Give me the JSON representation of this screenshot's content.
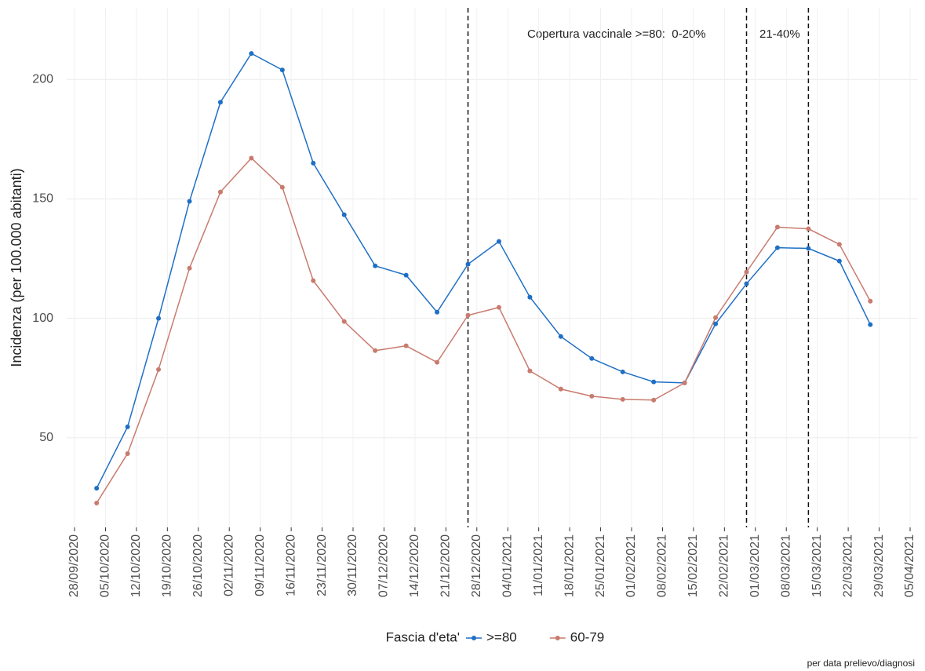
{
  "chart_data": {
    "type": "line",
    "y_label": "Incidenza (per 100.000 abitanti)",
    "annotations": [
      "Copertura vaccinale >=80:  0-20%",
      "21-40%"
    ],
    "caption": "per data prelievo/diagnosi",
    "legend_title": "Fascia d'eta'",
    "legend_position": "bottom",
    "grid": true,
    "x": [
      "2020-10-03",
      "2020-10-10",
      "2020-10-17",
      "2020-10-24",
      "2020-10-31",
      "2020-11-07",
      "2020-11-14",
      "2020-11-21",
      "2020-11-28",
      "2020-12-05",
      "2020-12-12",
      "2020-12-19",
      "2020-12-26",
      "2021-01-02",
      "2021-01-09",
      "2021-01-16",
      "2021-01-23",
      "2021-01-30",
      "2021-02-06",
      "2021-02-13",
      "2021-02-20",
      "2021-02-27",
      "2021-03-06",
      "2021-03-13",
      "2021-03-20",
      "2021-03-27"
    ],
    "series": [
      {
        "name": ">=80",
        "color": "#1f6fc5",
        "values": [
          28.9,
          54.6,
          100,
          149,
          190.5,
          210.9,
          204,
          165,
          143.4,
          122,
          118.1,
          102.6,
          122.7,
          132.2,
          108.9,
          92.4,
          83.2,
          77.6,
          73.4,
          73,
          97.7,
          114.5,
          129.6,
          129.3,
          124,
          97.4
        ]
      },
      {
        "name": "60-79",
        "color": "#c87b6e",
        "values": [
          22.7,
          43.4,
          78.6,
          121,
          152.9,
          167.1,
          154.9,
          115.8,
          98.7,
          86.5,
          88.5,
          81.6,
          101.3,
          104.6,
          78,
          70.4,
          67.4,
          66.1,
          65.8,
          73,
          100.3,
          119.4,
          138.2,
          137.5,
          131,
          107.2
        ]
      }
    ],
    "vlines": [
      "2020-12-26",
      "2021-02-27",
      "2021-03-13"
    ],
    "xlim": [
      "2020-09-28",
      "2021-04-05"
    ],
    "xticks": [
      {
        "value": "2020-09-28",
        "label": "28/09/2020"
      },
      {
        "value": "2020-10-05",
        "label": "05/10/2020"
      },
      {
        "value": "2020-10-12",
        "label": "12/10/2020"
      },
      {
        "value": "2020-10-19",
        "label": "19/10/2020"
      },
      {
        "value": "2020-10-26",
        "label": "26/10/2020"
      },
      {
        "value": "2020-11-02",
        "label": "02/11/2020"
      },
      {
        "value": "2020-11-09",
        "label": "09/11/2020"
      },
      {
        "value": "2020-11-16",
        "label": "16/11/2020"
      },
      {
        "value": "2020-11-23",
        "label": "23/11/2020"
      },
      {
        "value": "2020-11-30",
        "label": "30/11/2020"
      },
      {
        "value": "2020-12-07",
        "label": "07/12/2020"
      },
      {
        "value": "2020-12-14",
        "label": "14/12/2020"
      },
      {
        "value": "2020-12-21",
        "label": "21/12/2020"
      },
      {
        "value": "2020-12-28",
        "label": "28/12/2020"
      },
      {
        "value": "2021-01-04",
        "label": "04/01/2021"
      },
      {
        "value": "2021-01-11",
        "label": "11/01/2021"
      },
      {
        "value": "2021-01-18",
        "label": "18/01/2021"
      },
      {
        "value": "2021-01-25",
        "label": "25/01/2021"
      },
      {
        "value": "2021-02-01",
        "label": "01/02/2021"
      },
      {
        "value": "2021-02-08",
        "label": "08/02/2021"
      },
      {
        "value": "2021-02-15",
        "label": "15/02/2021"
      },
      {
        "value": "2021-02-22",
        "label": "22/02/2021"
      },
      {
        "value": "2021-03-01",
        "label": "01/03/2021"
      },
      {
        "value": "2021-03-08",
        "label": "08/03/2021"
      },
      {
        "value": "2021-03-15",
        "label": "15/03/2021"
      },
      {
        "value": "2021-03-22",
        "label": "22/03/2021"
      },
      {
        "value": "2021-03-29",
        "label": "29/03/2021"
      },
      {
        "value": "2021-04-05",
        "label": "05/04/2021"
      }
    ],
    "ylim": [
      12.5,
      230
    ],
    "yticks": [
      50,
      100,
      150,
      200
    ]
  }
}
